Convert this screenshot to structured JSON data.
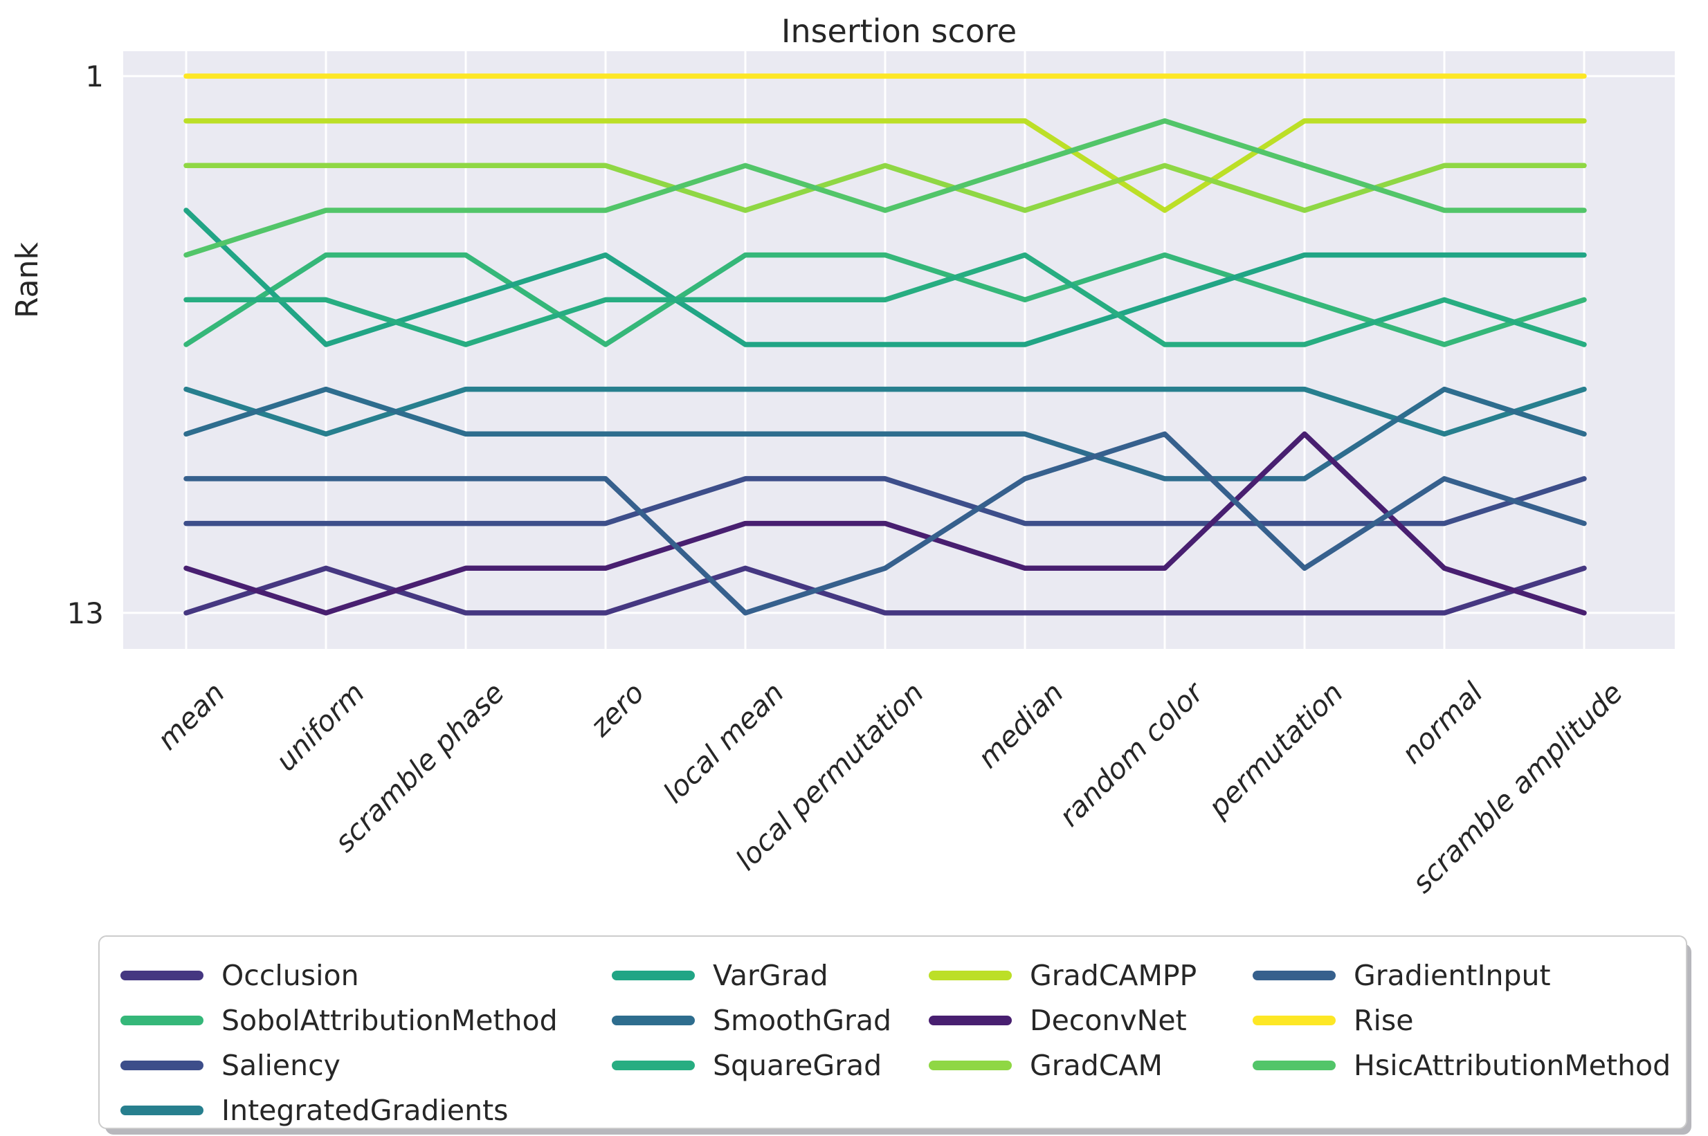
{
  "title": "Insertion score",
  "ylabel": "Rank",
  "chart_data": {
    "type": "line",
    "subtype": "bump-chart-of-ranks",
    "title": "Insertion score",
    "xlabel": "",
    "ylabel": "Rank",
    "ylim": [
      13.5,
      0.5
    ],
    "yticks": [
      1,
      13
    ],
    "ytick_labels": [
      "1",
      "13"
    ],
    "grid": "on",
    "plot_background": "#eaeaf2",
    "gridline_color": "#ffffff",
    "legend_position": "bottom",
    "categories": [
      "mean",
      "uniform",
      "scramble phase",
      "zero",
      "local mean",
      "local permutation",
      "median",
      "random color",
      "permutation",
      "normal",
      "scramble amplitude"
    ],
    "series": [
      {
        "name": "Occlusion",
        "color": "#453781",
        "ranks": [
          13,
          12,
          13,
          13,
          12,
          13,
          13,
          13,
          13,
          13,
          12
        ]
      },
      {
        "name": "SobolAttributionMethod",
        "color": "#35b779",
        "ranks": [
          7,
          5,
          5,
          7,
          5,
          5,
          6,
          5,
          6,
          7,
          6
        ]
      },
      {
        "name": "Saliency",
        "color": "#3d4e8a",
        "ranks": [
          11,
          11,
          11,
          11,
          10,
          10,
          11,
          11,
          11,
          11,
          10
        ]
      },
      {
        "name": "IntegratedGradients",
        "color": "#277f8e",
        "ranks": [
          8,
          9,
          8,
          8,
          8,
          8,
          8,
          8,
          8,
          9,
          8
        ]
      },
      {
        "name": "VarGrad",
        "color": "#21a585",
        "ranks": [
          4,
          7,
          6,
          5,
          7,
          7,
          7,
          6,
          5,
          5,
          5
        ]
      },
      {
        "name": "SmoothGrad",
        "color": "#2e6d8e",
        "ranks": [
          9,
          8,
          9,
          9,
          9,
          9,
          9,
          10,
          10,
          8,
          9
        ]
      },
      {
        "name": "SquareGrad",
        "color": "#27ad81",
        "ranks": [
          6,
          6,
          7,
          6,
          6,
          6,
          5,
          7,
          7,
          6,
          7
        ]
      },
      {
        "name": "GradCAMPP",
        "color": "#bcdf27",
        "ranks": [
          2,
          2,
          2,
          2,
          2,
          2,
          2,
          4,
          2,
          2,
          2
        ]
      },
      {
        "name": "DeconvNet",
        "color": "#481f70",
        "ranks": [
          12,
          13,
          12,
          12,
          11,
          11,
          12,
          12,
          9,
          12,
          13
        ]
      },
      {
        "name": "GradCAM",
        "color": "#8fd744",
        "ranks": [
          3,
          3,
          3,
          3,
          4,
          3,
          4,
          3,
          4,
          3,
          3
        ]
      },
      {
        "name": "GradientInput",
        "color": "#36608d",
        "ranks": [
          10,
          10,
          10,
          10,
          13,
          12,
          10,
          9,
          12,
          10,
          11
        ]
      },
      {
        "name": "Rise",
        "color": "#fde725",
        "ranks": [
          1,
          1,
          1,
          1,
          1,
          1,
          1,
          1,
          1,
          1,
          1
        ]
      },
      {
        "name": "HsicAttributionMethod",
        "color": "#52c569",
        "ranks": [
          5,
          4,
          4,
          4,
          3,
          4,
          3,
          2,
          3,
          4,
          4
        ]
      }
    ],
    "legend_columns": [
      [
        "Occlusion",
        "SobolAttributionMethod",
        "Saliency",
        "IntegratedGradients"
      ],
      [
        "VarGrad",
        "SmoothGrad",
        "SquareGrad"
      ],
      [
        "GradCAMPP",
        "DeconvNet",
        "GradCAM"
      ],
      [
        "GradientInput",
        "Rise",
        "HsicAttributionMethod"
      ]
    ]
  }
}
